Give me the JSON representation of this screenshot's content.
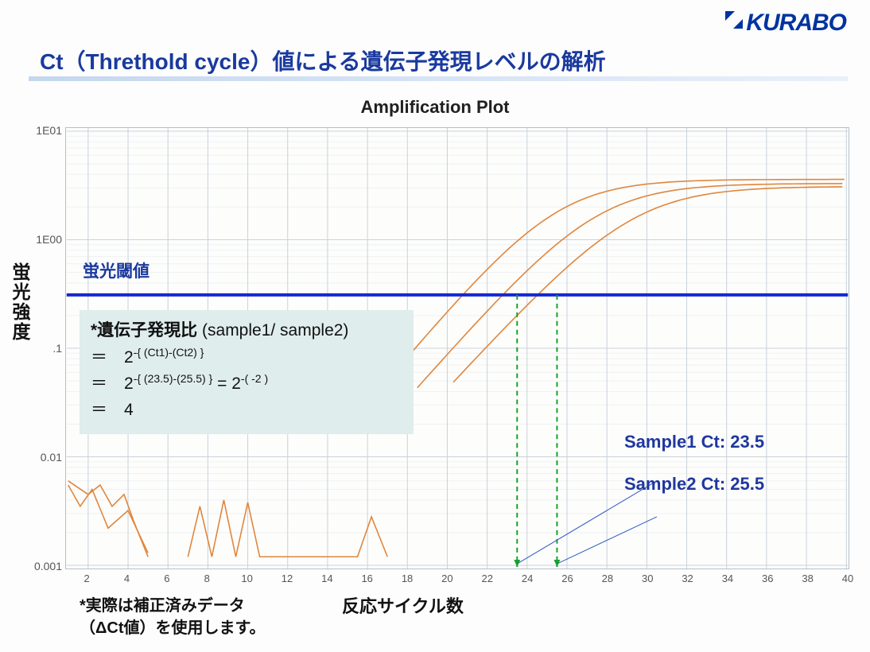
{
  "brand": {
    "logo_text": "KURABO"
  },
  "title": "Ct（Threthold cycle）値による遺伝子発現レベルの解析",
  "chart": {
    "type": "line-log",
    "title": "Amplification Plot",
    "y_label": "蛍光強度",
    "x_label": "反応サイクル数",
    "threshold_label": "蛍光閾値",
    "threshold_value": 0.31,
    "threshold_color": "#1428d0",
    "x_ticks": [
      2,
      4,
      6,
      8,
      10,
      12,
      14,
      16,
      18,
      20,
      22,
      24,
      26,
      28,
      30,
      32,
      34,
      36,
      38,
      40
    ],
    "xlim": [
      1,
      40
    ],
    "y_ticks_log": [
      0.001,
      0.01,
      0.1,
      1,
      10
    ],
    "y_tick_labels": [
      "0.001",
      "0.01",
      ".1",
      "1E00",
      "1E01"
    ],
    "ylim_log": [
      0.001,
      10
    ],
    "grid_color": "#c8d2db",
    "background_color": "#fdfdfc",
    "line_color": "#e0863c",
    "line_width": 1.6,
    "drop_line_color": "#17a328",
    "drop_line_dash": "6,5",
    "indicator_line_color": "#2e59c4",
    "curves": [
      {
        "name": "sample1",
        "ct": 23.5,
        "plateau": 3.6,
        "slope": 0.5,
        "noise": [
          [
            1,
            0.006
          ],
          [
            2,
            0.0045
          ],
          [
            2.6,
            0.0055
          ],
          [
            3.2,
            0.0035
          ],
          [
            3.8,
            0.0045
          ],
          [
            4.3,
            0.0025
          ],
          [
            5,
            0.0012
          ]
        ]
      },
      {
        "name": "sample2",
        "ct": 25.5,
        "plateau": 3.3,
        "slope": 0.48,
        "noise": [
          [
            1,
            0.0055
          ],
          [
            1.6,
            0.0035
          ],
          [
            2.2,
            0.005
          ],
          [
            3,
            0.0022
          ],
          [
            4,
            0.0032
          ],
          [
            5,
            0.0013
          ]
        ]
      },
      {
        "name": "sample3",
        "ct": 27.3,
        "plateau": 3.1,
        "slope": 0.46,
        "noise": [
          [
            7,
            0.0012
          ],
          [
            7.6,
            0.0035
          ],
          [
            8.2,
            0.0012
          ],
          [
            8.8,
            0.004
          ],
          [
            9.4,
            0.0012
          ],
          [
            10,
            0.0038
          ],
          [
            10.6,
            0.0012
          ],
          [
            15.5,
            0.0012
          ],
          [
            16.2,
            0.0028
          ],
          [
            17,
            0.0012
          ]
        ]
      }
    ]
  },
  "samples": {
    "s1_label": "Sample1 Ct: 23.5",
    "s2_label": "Sample2 Ct: 25.5"
  },
  "calc": {
    "header_bold": "*遺伝子発現比 ",
    "header_rest": "(sample1/ sample2)",
    "line1_pre": "＝　2",
    "line1_sup": "-{ (Ct1)-(Ct2) }",
    "line2_pre": "＝　2",
    "line2_sup": "-{ (23.5)-(25.5) }",
    "line2_mid": " = 2",
    "line2_sup2": "-( -2 )",
    "line3": "＝　4"
  },
  "footnote": {
    "l1": "*実際は補正済みデータ",
    "l2": "（ΔCt値）を使用します。"
  },
  "colors": {
    "brand": "#0033a0",
    "title": "#1a3a9e",
    "calc_bg": "#dfedec",
    "text": "#111111"
  }
}
